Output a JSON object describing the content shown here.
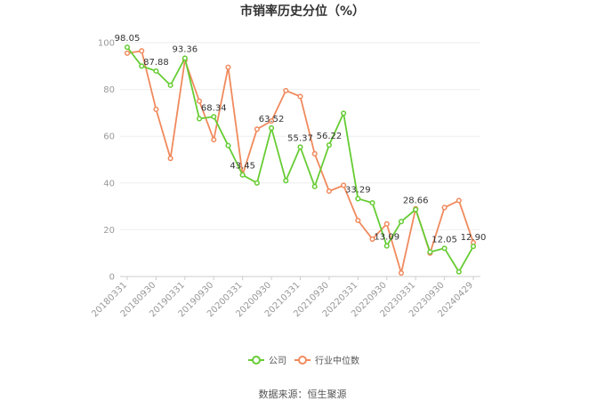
{
  "chart_data": {
    "type": "line",
    "title": "市销率历史分位（%）",
    "xlabel": "",
    "ylabel": "",
    "ylim": [
      0,
      100
    ],
    "yticks": [
      0,
      20,
      40,
      60,
      80,
      100
    ],
    "grid": true,
    "legend_position": "bottom-center",
    "x_tick_labels": [
      "20180331",
      "20180930",
      "20190331",
      "20190930",
      "20200331",
      "20200930",
      "20210331",
      "20210930",
      "20220331",
      "20220930",
      "20230331",
      "20230930",
      "20240429"
    ],
    "x": [
      "20180331",
      "20180630",
      "20180930",
      "20181231",
      "20190331",
      "20190630",
      "20190930",
      "20191231",
      "20200331",
      "20200630",
      "20200930",
      "20201231",
      "20210331",
      "20210630",
      "20210930",
      "20211231",
      "20220331",
      "20220630",
      "20220930",
      "20221231",
      "20230331",
      "20230630",
      "20230930",
      "20231231",
      "20240429"
    ],
    "series": [
      {
        "name": "公司",
        "color": "#66cc33",
        "values": [
          98.05,
          90.0,
          87.88,
          81.8,
          93.36,
          67.5,
          68.34,
          56.0,
          43.45,
          40.0,
          63.52,
          41.0,
          55.37,
          38.5,
          56.22,
          69.8,
          33.29,
          31.5,
          13.09,
          23.5,
          28.66,
          10.5,
          12.05,
          2.0,
          12.9
        ],
        "labels": {
          "0": "98.05",
          "2": "87.88",
          "4": "93.36",
          "6": "68.34",
          "8": "43.45",
          "10": "63.52",
          "12": "55.37",
          "14": "56.22",
          "16": "33.29",
          "18": "13.09",
          "20": "28.66",
          "22": "12.05",
          "24": "12.90"
        }
      },
      {
        "name": "行业中位数",
        "color": "#f08a5d",
        "values": [
          95.5,
          96.5,
          71.5,
          50.5,
          92.5,
          75.0,
          58.5,
          89.5,
          43.5,
          63.0,
          66.5,
          79.5,
          77.0,
          52.5,
          36.5,
          39.0,
          24.0,
          16.0,
          22.5,
          1.5,
          29.0,
          10.0,
          29.5,
          32.5,
          14.5
        ]
      }
    ]
  },
  "source_text": "数据来源：恒生聚源"
}
